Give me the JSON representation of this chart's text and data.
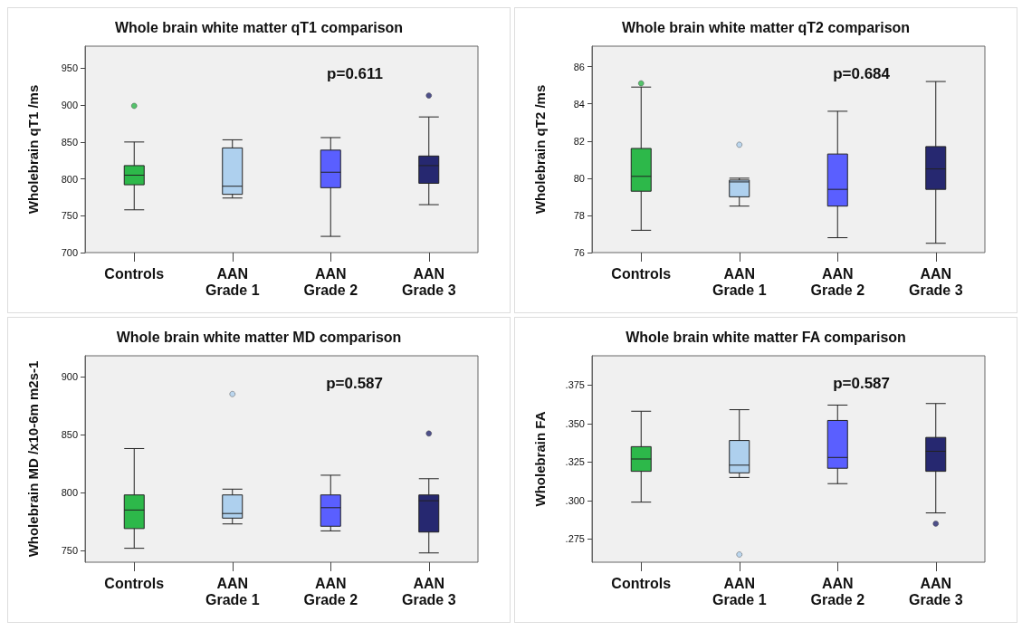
{
  "chart_data": [
    {
      "type": "box",
      "title": "Whole brain white matter qT1 comparison",
      "ylabel": "Wholebrain qT1 /ms",
      "categories": [
        "Controls",
        "AAN\nGrade 1",
        "AAN\nGrade 2",
        "AAN\nGrade 3"
      ],
      "colors": [
        "#2db84a",
        "#aed0ee",
        "#5a5fff",
        "#262870"
      ],
      "ylim": [
        700,
        980
      ],
      "yticks": [
        700,
        750,
        800,
        850,
        900,
        950
      ],
      "grid": false,
      "annotations": [
        "p=0.611"
      ],
      "boxes": [
        {
          "low": 758,
          "q1": 792,
          "median": 805,
          "q3": 818,
          "high": 850,
          "outliers": [
            899
          ]
        },
        {
          "low": 774,
          "q1": 779,
          "median": 790,
          "q3": 842,
          "high": 853
        },
        {
          "low": 722,
          "q1": 788,
          "median": 809,
          "q3": 839,
          "high": 856
        },
        {
          "low": 765,
          "q1": 794,
          "median": 818,
          "q3": 831,
          "high": 884,
          "outliers": [
            913
          ]
        }
      ]
    },
    {
      "type": "box",
      "title": "Whole brain white matter qT2 comparison",
      "ylabel": "Wholebrain qT2 /ms",
      "categories": [
        "Controls",
        "AAN\nGrade 1",
        "AAN\nGrade 2",
        "AAN\nGrade 3"
      ],
      "colors": [
        "#2db84a",
        "#aed0ee",
        "#5a5fff",
        "#262870"
      ],
      "ylim": [
        76,
        87.1
      ],
      "yticks": [
        76,
        78,
        80,
        82,
        84,
        86
      ],
      "grid": false,
      "annotations": [
        "p=0.684"
      ],
      "boxes": [
        {
          "low": 77.2,
          "q1": 79.3,
          "median": 80.1,
          "q3": 81.6,
          "high": 84.9,
          "outliers": [
            85.1
          ]
        },
        {
          "low": 78.5,
          "q1": 79.0,
          "median": 79.8,
          "q3": 79.9,
          "high": 80.0,
          "outliers": [
            81.8
          ]
        },
        {
          "low": 76.8,
          "q1": 78.5,
          "median": 79.4,
          "q3": 81.3,
          "high": 83.6
        },
        {
          "low": 76.5,
          "q1": 79.4,
          "median": 80.5,
          "q3": 81.7,
          "high": 85.2
        }
      ]
    },
    {
      "type": "box",
      "title": "Whole brain white matter MD comparison",
      "ylabel": "Wholebrain MD /x10-6m m2s-1",
      "categories": [
        "Controls",
        "AAN\nGrade 1",
        "AAN\nGrade 2",
        "AAN\nGrade 3"
      ],
      "colors": [
        "#2db84a",
        "#aed0ee",
        "#5a5fff",
        "#262870"
      ],
      "ylim": [
        740,
        918
      ],
      "yticks": [
        750,
        800,
        850,
        900
      ],
      "grid": false,
      "annotations": [
        "p=0.587"
      ],
      "boxes": [
        {
          "low": 752,
          "q1": 769,
          "median": 785,
          "q3": 798,
          "high": 838
        },
        {
          "low": 773,
          "q1": 778,
          "median": 782,
          "q3": 798,
          "high": 803,
          "outliers": [
            885
          ]
        },
        {
          "low": 767,
          "q1": 771,
          "median": 787,
          "q3": 798,
          "high": 815
        },
        {
          "low": 748,
          "q1": 766,
          "median": 793,
          "q3": 798,
          "high": 812,
          "outliers": [
            851
          ]
        }
      ]
    },
    {
      "type": "box",
      "title": "Whole brain white matter FA comparison",
      "ylabel": "Wholebrain FA",
      "categories": [
        "Controls",
        "AAN\nGrade 1",
        "AAN\nGrade 2",
        "AAN\nGrade 3"
      ],
      "colors": [
        "#2db84a",
        "#aed0ee",
        "#5a5fff",
        "#262870"
      ],
      "ylim": [
        0.26,
        0.394
      ],
      "yticks": [
        {
          "value": 0.275,
          "label": ".275"
        },
        {
          "value": 0.3,
          "label": ".300"
        },
        {
          "value": 0.325,
          "label": ".325"
        },
        {
          "value": 0.35,
          "label": ".350"
        },
        {
          "value": 0.375,
          "label": ".375"
        }
      ],
      "grid": false,
      "annotations": [
        "p=0.587"
      ],
      "boxes": [
        {
          "low": 0.299,
          "q1": 0.319,
          "median": 0.327,
          "q3": 0.335,
          "high": 0.358
        },
        {
          "low": 0.315,
          "q1": 0.318,
          "median": 0.323,
          "q3": 0.339,
          "high": 0.359,
          "outliers": [
            0.265
          ]
        },
        {
          "low": 0.311,
          "q1": 0.321,
          "median": 0.328,
          "q3": 0.352,
          "high": 0.362
        },
        {
          "low": 0.292,
          "q1": 0.319,
          "median": 0.332,
          "q3": 0.341,
          "high": 0.363,
          "outliers": [
            0.285
          ]
        }
      ]
    }
  ]
}
